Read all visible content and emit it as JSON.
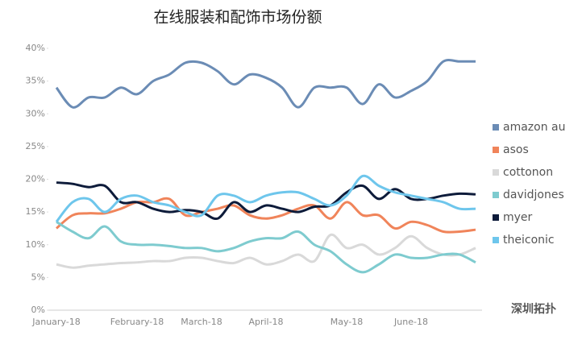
{
  "chart_data": {
    "type": "line",
    "title": "在线服装和配饰市场份额",
    "categories": [
      "January-18",
      null,
      null,
      null,
      null,
      "February-18",
      null,
      null,
      null,
      "March-18",
      null,
      null,
      null,
      "April-18",
      null,
      null,
      null,
      null,
      "May-18",
      null,
      null,
      null,
      "June-18",
      null,
      null,
      null,
      null
    ],
    "series": [
      {
        "name": "amazon au",
        "color": "#6b8cb5",
        "values": [
          34,
          31,
          32.5,
          32.5,
          34,
          33,
          35,
          36,
          37.8,
          37.8,
          36.5,
          34.5,
          36,
          35.5,
          34,
          31,
          34,
          34,
          34,
          31.5,
          34.5,
          32.5,
          33.5,
          35,
          38,
          38,
          38
        ]
      },
      {
        "name": "asos",
        "color": "#f0845a",
        "values": [
          12.5,
          14.5,
          14.8,
          14.8,
          15.5,
          16.5,
          16.5,
          17,
          14.5,
          15,
          15.5,
          16,
          14.5,
          14,
          14.5,
          15.5,
          16,
          14,
          16.5,
          14.5,
          14.5,
          12.5,
          13.5,
          13,
          12,
          12,
          12.3
        ]
      },
      {
        "name": "cottonon",
        "color": "#d9d9d9",
        "values": [
          7,
          6.5,
          6.8,
          7,
          7.2,
          7.3,
          7.5,
          7.5,
          8,
          8,
          7.5,
          7.2,
          8,
          7,
          7.5,
          8.5,
          7.5,
          11.5,
          9.5,
          10,
          8.5,
          9.5,
          11.3,
          9.5,
          8.5,
          8.5,
          9.5
        ]
      },
      {
        "name": "davidjones",
        "color": "#7ecbcf",
        "values": [
          13.5,
          12,
          11,
          12.8,
          10.5,
          10,
          10,
          9.8,
          9.5,
          9.5,
          9,
          9.5,
          10.5,
          11,
          11,
          12,
          10,
          9,
          7,
          5.8,
          7,
          8.5,
          8,
          8,
          8.5,
          8.5,
          7.3
        ]
      },
      {
        "name": "myer",
        "color": "#0d1b3a",
        "values": [
          19.5,
          19.3,
          18.8,
          19,
          16.5,
          16.5,
          15.5,
          15,
          15.3,
          15,
          14,
          16.5,
          15,
          16,
          15.5,
          15,
          15.8,
          16,
          18,
          19,
          17,
          18.5,
          17,
          17,
          17.5,
          17.8,
          17.7
        ]
      },
      {
        "name": "theiconic",
        "color": "#6ec6ec",
        "values": [
          13.5,
          16.5,
          17,
          15,
          17,
          17.5,
          16.5,
          16,
          15,
          14.5,
          17.5,
          17.5,
          16.5,
          17.5,
          18,
          18,
          17,
          16,
          17.5,
          20.5,
          19,
          18,
          17.5,
          17,
          16.5,
          15.5,
          15.5
        ]
      }
    ],
    "ylim": [
      0,
      40
    ],
    "yticks": [
      {
        "value": 0,
        "label": "0%"
      },
      {
        "value": 5,
        "label": "5%"
      },
      {
        "value": 10,
        "label": "10%"
      },
      {
        "value": 15,
        "label": "15%"
      },
      {
        "value": 20,
        "label": "20%"
      },
      {
        "value": 25,
        "label": "25%"
      },
      {
        "value": 30,
        "label": "30%"
      },
      {
        "value": 35,
        "label": "35%"
      },
      {
        "value": 40,
        "label": "40%"
      }
    ],
    "grid": false,
    "legend": "right",
    "watermark": "深圳拓扑"
  }
}
